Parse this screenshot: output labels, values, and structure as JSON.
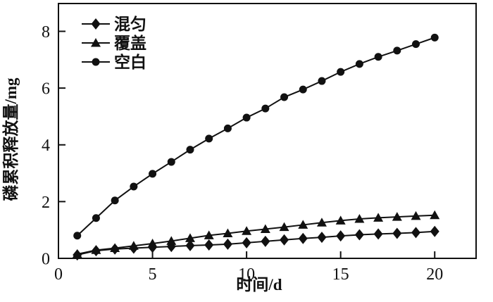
{
  "figure": {
    "background": "#ffffff",
    "ink_color": "#111111"
  },
  "chart_data": {
    "type": "line",
    "title": "",
    "xlabel": "时间/d",
    "ylabel": "磷累积释放量/mg",
    "x": [
      1,
      2,
      3,
      4,
      5,
      6,
      7,
      8,
      9,
      10,
      11,
      12,
      13,
      14,
      15,
      16,
      17,
      18,
      19,
      20
    ],
    "series": [
      {
        "name": "混匀",
        "marker": "diamond",
        "values": [
          0.12,
          0.27,
          0.33,
          0.36,
          0.39,
          0.42,
          0.45,
          0.47,
          0.5,
          0.55,
          0.6,
          0.65,
          0.7,
          0.74,
          0.79,
          0.83,
          0.86,
          0.88,
          0.91,
          0.95
        ]
      },
      {
        "name": "覆盖",
        "marker": "triangle",
        "values": [
          0.15,
          0.29,
          0.36,
          0.44,
          0.52,
          0.61,
          0.71,
          0.81,
          0.88,
          0.96,
          1.03,
          1.1,
          1.18,
          1.26,
          1.33,
          1.39,
          1.43,
          1.46,
          1.49,
          1.52
        ]
      },
      {
        "name": "空白",
        "marker": "circle",
        "values": [
          0.8,
          1.42,
          2.04,
          2.53,
          2.98,
          3.4,
          3.83,
          4.22,
          4.58,
          4.96,
          5.28,
          5.68,
          5.95,
          6.25,
          6.57,
          6.85,
          7.1,
          7.32,
          7.55,
          7.78
        ]
      }
    ],
    "xlim": [
      0,
      22.2
    ],
    "ylim": [
      0,
      8.98
    ],
    "xticks": [
      0,
      5,
      10,
      15,
      20
    ],
    "yticks": [
      0,
      2,
      4,
      6,
      8
    ],
    "grid": false,
    "legend_position": "top-left",
    "line_color": "#111111",
    "marker_color": "#111111"
  }
}
